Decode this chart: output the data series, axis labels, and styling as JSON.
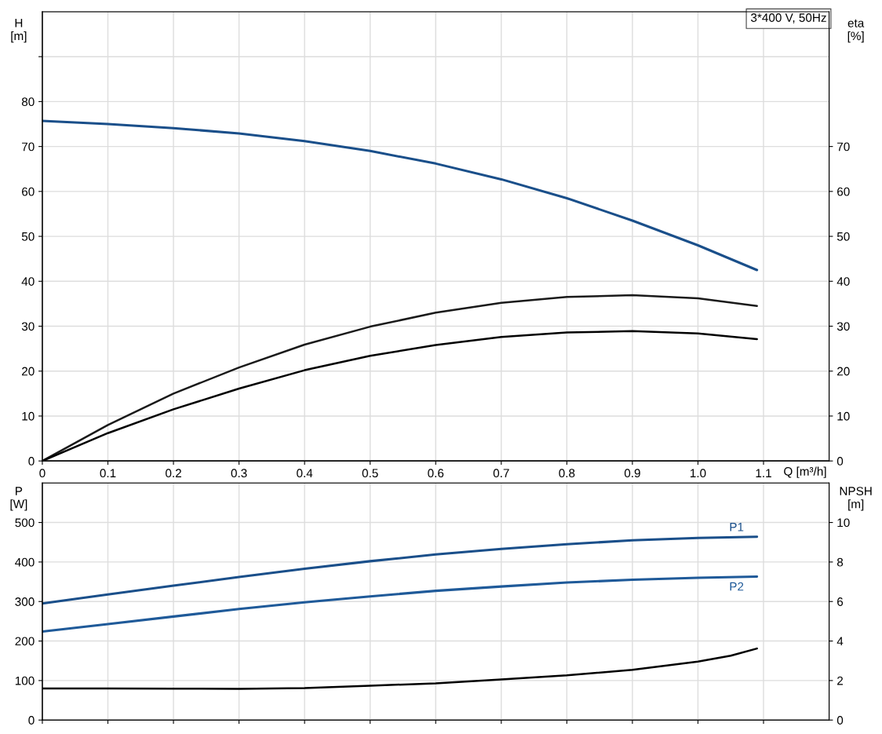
{
  "chart_data": [
    {
      "type": "line",
      "xlabel": "Q [m³/h]",
      "ylabel": "H\n[m]",
      "y2label": "eta\n[%]",
      "annotations": [
        "3*400 V, 50Hz"
      ],
      "xlim": [
        0,
        1.2
      ],
      "xticks": [
        0,
        0.1,
        0.2,
        0.3,
        0.4,
        0.5,
        0.6,
        0.7,
        0.8,
        0.9,
        {
          "value": 1.0,
          "label": "1.0"
        },
        1.1
      ],
      "ylim": [
        0,
        100
      ],
      "yticks": [
        0,
        10,
        20,
        30,
        40,
        50,
        60,
        70,
        80,
        {
          "value": 90,
          "label": null
        }
      ],
      "y2lim": [
        0,
        100
      ],
      "y2ticks": [
        0,
        10,
        20,
        30,
        40,
        50,
        60,
        70
      ],
      "grid": true,
      "legend": false,
      "line_style": "solid",
      "marker": "none",
      "x": [
        0,
        0.1,
        0.2,
        0.3,
        0.4,
        0.5,
        0.6,
        0.7,
        0.8,
        0.9,
        1.0,
        1.09
      ],
      "series": [
        {
          "color": "#1a4f8a",
          "values": [
            75.7,
            75.0,
            74.1,
            72.9,
            71.2,
            69.0,
            66.2,
            62.7,
            58.5,
            53.5,
            48.0,
            42.5
          ]
        },
        {
          "color": "#1a1a1a",
          "axis": "y2",
          "values": [
            0,
            8,
            15,
            20.8,
            25.9,
            29.9,
            33.0,
            35.2,
            36.5,
            36.9,
            36.2,
            34.5
          ]
        },
        {
          "color": "#000000",
          "axis": "y2",
          "values": [
            0,
            6.2,
            11.5,
            16.1,
            20.2,
            23.4,
            25.8,
            27.6,
            28.6,
            28.9,
            28.4,
            27.1
          ]
        }
      ]
    },
    {
      "type": "line",
      "ylabel": "P\n[W]",
      "y2label": "NPSH\n[m]",
      "xlim": [
        0,
        1.2
      ],
      "xticks": [
        {
          "value": 0,
          "label": null
        },
        {
          "value": 0.1,
          "label": null
        },
        {
          "value": 0.2,
          "label": null
        },
        {
          "value": 0.3,
          "label": null
        },
        {
          "value": 0.4,
          "label": null
        },
        {
          "value": 0.5,
          "label": null
        },
        {
          "value": 0.6,
          "label": null
        },
        {
          "value": 0.7,
          "label": null
        },
        {
          "value": 0.8,
          "label": null
        },
        {
          "value": 0.9,
          "label": null
        },
        {
          "value": 1.0,
          "label": null
        },
        {
          "value": 1.1,
          "label": null
        }
      ],
      "ylim": [
        0,
        600
      ],
      "yticks": [
        0,
        100,
        200,
        300,
        400,
        500
      ],
      "y2lim": [
        0,
        12
      ],
      "y2ticks": [
        0,
        2,
        4,
        6,
        8,
        10
      ],
      "tick_labels": "y",
      "grid": true,
      "legend": false,
      "line_style": "solid",
      "marker": "none",
      "x": [
        0,
        0.1,
        0.2,
        0.3,
        0.4,
        0.5,
        0.6,
        0.7,
        0.8,
        0.9,
        1.0,
        1.09
      ],
      "series": [
        {
          "name": "P1",
          "color": "#1a4f8a",
          "values": [
            295,
            318,
            340,
            362,
            383,
            402,
            419,
            433,
            445,
            455,
            461,
            464
          ]
        },
        {
          "name": "P2",
          "color": "#1f5a99",
          "values": [
            224,
            243,
            262,
            281,
            298,
            313,
            327,
            338,
            348,
            355,
            360,
            363
          ]
        },
        {
          "color": "#000000",
          "axis": "y2",
          "x": [
            0,
            0.1,
            0.2,
            0.3,
            0.4,
            0.5,
            0.6,
            0.7,
            0.8,
            0.9,
            1.0,
            1.05,
            1.09
          ],
          "values": [
            1.6,
            1.6,
            1.59,
            1.58,
            1.62,
            1.74,
            1.86,
            2.06,
            2.26,
            2.54,
            2.96,
            3.26,
            3.62
          ]
        }
      ]
    }
  ]
}
